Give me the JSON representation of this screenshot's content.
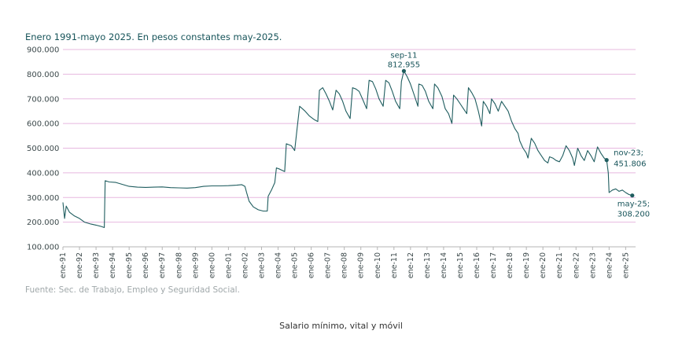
{
  "subtitle": "Enero 1991-mayo 2025. En pesos constantes may-2025.",
  "source": "Fuente: Sec. de Trabajo, Empleo y Seguridad Social.",
  "caption": "Salario mínimo, vital y móvil",
  "colors": {
    "line": "#1f5d5f",
    "grid": "#e7b8df",
    "axis": "#b4b4b4",
    "text": "#17545a",
    "marker": "#1f5d5f"
  },
  "chart_data": {
    "type": "line",
    "title": "",
    "xlabel": "",
    "ylabel": "",
    "x_unit": "year",
    "ylim": [
      100000,
      900000
    ],
    "grid": "horizontal",
    "y_ticks": [
      {
        "value": 100000,
        "label": "100.000"
      },
      {
        "value": 200000,
        "label": "200.000"
      },
      {
        "value": 300000,
        "label": "300.000"
      },
      {
        "value": 400000,
        "label": "400.000"
      },
      {
        "value": 500000,
        "label": "500.000"
      },
      {
        "value": 600000,
        "label": "600.000"
      },
      {
        "value": 700000,
        "label": "700.000"
      },
      {
        "value": 800000,
        "label": "800.000"
      },
      {
        "value": 900000,
        "label": "900.000"
      }
    ],
    "x_ticks": [
      {
        "value": 1991,
        "label": "ene-91"
      },
      {
        "value": 1992,
        "label": "ene-92"
      },
      {
        "value": 1993,
        "label": "ene-93"
      },
      {
        "value": 1994,
        "label": "ene-94"
      },
      {
        "value": 1995,
        "label": "ene-95"
      },
      {
        "value": 1996,
        "label": "ene-96"
      },
      {
        "value": 1997,
        "label": "ene-97"
      },
      {
        "value": 1998,
        "label": "ene-98"
      },
      {
        "value": 1999,
        "label": "ene-99"
      },
      {
        "value": 2000,
        "label": "ene-00"
      },
      {
        "value": 2001,
        "label": "ene-01"
      },
      {
        "value": 2002,
        "label": "ene-02"
      },
      {
        "value": 2003,
        "label": "ene-03"
      },
      {
        "value": 2004,
        "label": "ene-04"
      },
      {
        "value": 2005,
        "label": "ene-05"
      },
      {
        "value": 2006,
        "label": "ene-06"
      },
      {
        "value": 2007,
        "label": "ene-07"
      },
      {
        "value": 2008,
        "label": "ene-08"
      },
      {
        "value": 2009,
        "label": "ene-09"
      },
      {
        "value": 2010,
        "label": "ene-10"
      },
      {
        "value": 2011,
        "label": "ene-11"
      },
      {
        "value": 2012,
        "label": "ene-12"
      },
      {
        "value": 2013,
        "label": "ene-13"
      },
      {
        "value": 2014,
        "label": "ene-14"
      },
      {
        "value": 2015,
        "label": "ene-15"
      },
      {
        "value": 2016,
        "label": "ene-16"
      },
      {
        "value": 2017,
        "label": "ene-17"
      },
      {
        "value": 2018,
        "label": "ene-18"
      },
      {
        "value": 2019,
        "label": "ene-19"
      },
      {
        "value": 2020,
        "label": "ene-20"
      },
      {
        "value": 2021,
        "label": "ene-21"
      },
      {
        "value": 2022,
        "label": "ene-22"
      },
      {
        "value": 2023,
        "label": "ene-23"
      },
      {
        "value": 2024,
        "label": "ene-24"
      },
      {
        "value": 2025,
        "label": "ene-25"
      }
    ],
    "xlim": [
      1991,
      2025.6
    ],
    "series": [
      {
        "points": [
          [
            1991.0,
            280000
          ],
          [
            1991.1,
            215000
          ],
          [
            1991.2,
            265000
          ],
          [
            1991.4,
            240000
          ],
          [
            1991.7,
            225000
          ],
          [
            1992.0,
            215000
          ],
          [
            1992.3,
            200000
          ],
          [
            1992.7,
            192000
          ],
          [
            1993.0,
            188000
          ],
          [
            1993.3,
            183000
          ],
          [
            1993.5,
            178000
          ],
          [
            1993.55,
            368000
          ],
          [
            1993.8,
            363000
          ],
          [
            1994.2,
            361000
          ],
          [
            1994.6,
            353000
          ],
          [
            1995.0,
            345000
          ],
          [
            1995.5,
            342000
          ],
          [
            1996.0,
            341000
          ],
          [
            1996.5,
            342000
          ],
          [
            1997.0,
            343000
          ],
          [
            1997.5,
            340000
          ],
          [
            1998.0,
            339000
          ],
          [
            1998.5,
            338000
          ],
          [
            1999.0,
            340000
          ],
          [
            1999.5,
            345000
          ],
          [
            2000.0,
            347000
          ],
          [
            2000.5,
            347000
          ],
          [
            2001.0,
            348000
          ],
          [
            2001.5,
            350000
          ],
          [
            2001.8,
            352000
          ],
          [
            2002.0,
            345000
          ],
          [
            2002.1,
            320000
          ],
          [
            2002.25,
            285000
          ],
          [
            2002.5,
            262000
          ],
          [
            2002.8,
            250000
          ],
          [
            2003.1,
            245000
          ],
          [
            2003.35,
            245000
          ],
          [
            2003.4,
            305000
          ],
          [
            2003.6,
            330000
          ],
          [
            2003.8,
            360000
          ],
          [
            2003.9,
            420000
          ],
          [
            2004.1,
            415000
          ],
          [
            2004.4,
            405000
          ],
          [
            2004.5,
            518000
          ],
          [
            2004.8,
            510000
          ],
          [
            2005.0,
            490000
          ],
          [
            2005.15,
            580000
          ],
          [
            2005.3,
            670000
          ],
          [
            2005.6,
            652000
          ],
          [
            2005.9,
            630000
          ],
          [
            2006.2,
            615000
          ],
          [
            2006.4,
            608000
          ],
          [
            2006.5,
            735000
          ],
          [
            2006.7,
            745000
          ],
          [
            2006.9,
            720000
          ],
          [
            2007.1,
            690000
          ],
          [
            2007.3,
            655000
          ],
          [
            2007.5,
            735000
          ],
          [
            2007.7,
            720000
          ],
          [
            2007.9,
            690000
          ],
          [
            2008.1,
            650000
          ],
          [
            2008.35,
            620000
          ],
          [
            2008.5,
            745000
          ],
          [
            2008.7,
            740000
          ],
          [
            2008.9,
            730000
          ],
          [
            2009.1,
            700000
          ],
          [
            2009.35,
            660000
          ],
          [
            2009.5,
            775000
          ],
          [
            2009.7,
            770000
          ],
          [
            2009.9,
            740000
          ],
          [
            2010.1,
            700000
          ],
          [
            2010.35,
            670000
          ],
          [
            2010.5,
            775000
          ],
          [
            2010.7,
            765000
          ],
          [
            2010.9,
            730000
          ],
          [
            2011.1,
            690000
          ],
          [
            2011.35,
            660000
          ],
          [
            2011.45,
            770000
          ],
          [
            2011.6,
            812955
          ],
          [
            2011.8,
            790000
          ],
          [
            2012.0,
            760000
          ],
          [
            2012.2,
            720000
          ],
          [
            2012.45,
            670000
          ],
          [
            2012.5,
            760000
          ],
          [
            2012.7,
            755000
          ],
          [
            2012.9,
            730000
          ],
          [
            2013.1,
            690000
          ],
          [
            2013.35,
            660000
          ],
          [
            2013.45,
            760000
          ],
          [
            2013.65,
            745000
          ],
          [
            2013.9,
            710000
          ],
          [
            2014.1,
            660000
          ],
          [
            2014.3,
            640000
          ],
          [
            2014.5,
            600000
          ],
          [
            2014.6,
            715000
          ],
          [
            2014.8,
            700000
          ],
          [
            2015.0,
            680000
          ],
          [
            2015.2,
            660000
          ],
          [
            2015.4,
            640000
          ],
          [
            2015.5,
            745000
          ],
          [
            2015.7,
            725000
          ],
          [
            2015.9,
            700000
          ],
          [
            2016.1,
            650000
          ],
          [
            2016.3,
            590000
          ],
          [
            2016.4,
            690000
          ],
          [
            2016.6,
            670000
          ],
          [
            2016.8,
            640000
          ],
          [
            2016.9,
            700000
          ],
          [
            2017.1,
            680000
          ],
          [
            2017.3,
            650000
          ],
          [
            2017.5,
            690000
          ],
          [
            2017.7,
            670000
          ],
          [
            2017.9,
            650000
          ],
          [
            2018.1,
            610000
          ],
          [
            2018.3,
            580000
          ],
          [
            2018.5,
            560000
          ],
          [
            2018.6,
            530000
          ],
          [
            2018.8,
            500000
          ],
          [
            2019.0,
            480000
          ],
          [
            2019.1,
            460000
          ],
          [
            2019.3,
            540000
          ],
          [
            2019.5,
            520000
          ],
          [
            2019.7,
            490000
          ],
          [
            2019.9,
            470000
          ],
          [
            2020.1,
            450000
          ],
          [
            2020.3,
            440000
          ],
          [
            2020.4,
            465000
          ],
          [
            2020.6,
            460000
          ],
          [
            2020.8,
            450000
          ],
          [
            2021.0,
            445000
          ],
          [
            2021.2,
            470000
          ],
          [
            2021.4,
            510000
          ],
          [
            2021.6,
            490000
          ],
          [
            2021.8,
            460000
          ],
          [
            2021.9,
            430000
          ],
          [
            2022.1,
            500000
          ],
          [
            2022.3,
            470000
          ],
          [
            2022.5,
            450000
          ],
          [
            2022.7,
            490000
          ],
          [
            2022.9,
            470000
          ],
          [
            2023.1,
            445000
          ],
          [
            2023.3,
            505000
          ],
          [
            2023.5,
            480000
          ],
          [
            2023.7,
            460000
          ],
          [
            2023.85,
            451806
          ],
          [
            2023.95,
            400000
          ],
          [
            2024.0,
            320000
          ],
          [
            2024.2,
            330000
          ],
          [
            2024.4,
            335000
          ],
          [
            2024.6,
            325000
          ],
          [
            2024.8,
            330000
          ],
          [
            2025.0,
            320000
          ],
          [
            2025.2,
            312000
          ],
          [
            2025.4,
            308200
          ]
        ]
      }
    ],
    "annotations": [
      {
        "x": 2011.6,
        "y": 812955,
        "label": "sep-11",
        "value_label": "812.955",
        "anchor": "above"
      },
      {
        "x": 2023.85,
        "y": 451806,
        "label": "nov-23;",
        "value_label": "451.806",
        "anchor": "right"
      },
      {
        "x": 2025.4,
        "y": 308200,
        "label": "may-25;",
        "value_label": "308.200",
        "anchor": "below-right"
      }
    ]
  }
}
